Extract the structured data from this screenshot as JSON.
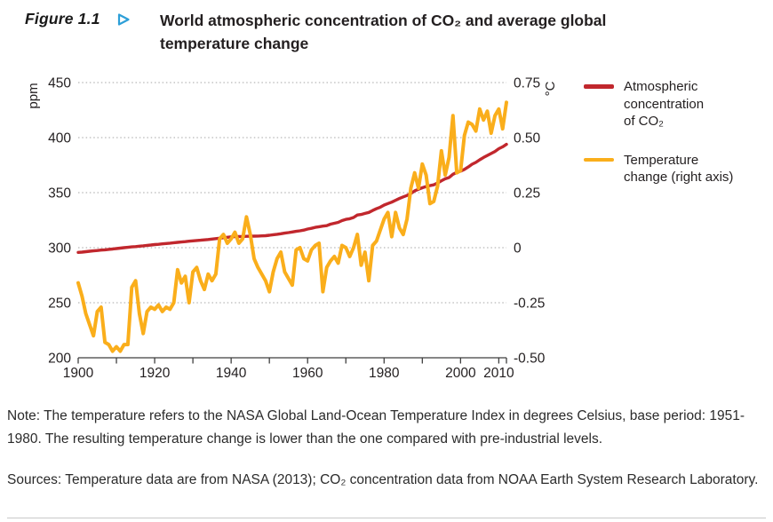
{
  "figure": {
    "label": "Figure 1.1",
    "marker_icon": "triangle-right-icon",
    "title": "World atmospheric concentration of CO₂ and average global\ntemperature change"
  },
  "legend": {
    "items": [
      {
        "label": "Atmospheric\nconcentration\nof CO₂",
        "color": "#C1272D"
      },
      {
        "label": "Temperature\nchange (right axis)",
        "color": "#FAAE1B"
      }
    ]
  },
  "note": "Note: The temperature refers to the NASA Global Land-Ocean Temperature Index in degrees Celsius, base period: 1951-1980. The resulting temperature change is lower than the one compared with pre-industrial levels.",
  "sources": "Sources: Temperature data are from NASA (2013); CO₂ concentration data from NOAA Earth System Research Laboratory.",
  "colors": {
    "co2_red": "#C1272D",
    "temp_yellow": "#FAAE1B",
    "marker_blue": "#2D9FD8",
    "grid_gray": "#A6A6A6",
    "axis_dark": "#3F3F3F",
    "text_dark": "#231F20"
  },
  "chart_data": {
    "type": "line",
    "title": "World atmospheric concentration of CO₂ and average global temperature change",
    "grid": "dotted-horizontal",
    "legend_position": "right",
    "x_axis": {
      "range": [
        1900,
        2012
      ],
      "tick_step_years": 10,
      "tick_labels": [
        1900,
        1920,
        1940,
        1960,
        1980,
        2000,
        2010
      ]
    },
    "left_axis": {
      "unit": "ppm",
      "range": [
        200,
        450
      ],
      "ticks": [
        450,
        400,
        350,
        300,
        250,
        200
      ]
    },
    "right_axis": {
      "unit": "°C",
      "range": [
        -0.5,
        0.75
      ],
      "tick_values": [
        0.75,
        0.5,
        0.25,
        0,
        -0.25,
        -0.5
      ],
      "tick_labels": [
        "0.75",
        "0.50",
        "0.25",
        "0",
        "-0.25",
        "-0.50"
      ]
    },
    "start_year": 1900,
    "series": [
      {
        "name": "Atmospheric concentration of CO₂",
        "axis": "left",
        "unit": "ppm",
        "color": "#C1272D",
        "values": [
          295.7,
          296.0,
          296.4,
          296.8,
          297.1,
          297.4,
          297.8,
          298.1,
          298.5,
          298.8,
          299.2,
          299.6,
          300.0,
          300.3,
          300.7,
          301.0,
          301.4,
          301.7,
          302.1,
          302.4,
          302.8,
          303.1,
          303.5,
          303.8,
          304.1,
          304.5,
          304.8,
          305.2,
          305.5,
          305.9,
          306.2,
          306.5,
          306.8,
          307.1,
          307.4,
          307.8,
          308.2,
          308.6,
          309.0,
          309.4,
          309.8,
          310.0,
          310.1,
          310.2,
          310.3,
          310.4,
          310.5,
          310.6,
          310.7,
          310.9,
          311.3,
          311.8,
          312.2,
          312.7,
          313.2,
          313.7,
          314.3,
          314.8,
          315.3,
          316.0,
          316.9,
          317.6,
          318.5,
          319.0,
          319.6,
          320.0,
          321.4,
          322.2,
          323.0,
          324.6,
          325.7,
          326.3,
          327.4,
          329.7,
          330.2,
          331.1,
          332.0,
          333.8,
          335.4,
          336.8,
          338.7,
          340.1,
          341.4,
          343.1,
          344.7,
          346.1,
          347.4,
          349.2,
          351.6,
          353.1,
          354.4,
          355.6,
          356.4,
          357.1,
          358.8,
          360.8,
          362.6,
          363.7,
          366.7,
          368.4,
          369.5,
          371.1,
          373.3,
          375.8,
          377.5,
          379.8,
          381.9,
          383.8,
          385.6,
          387.4,
          389.9,
          391.6,
          393.9
        ]
      },
      {
        "name": "Temperature change (right axis)",
        "axis": "right",
        "unit": "°C",
        "color": "#FAAE1B",
        "values": [
          -0.16,
          -0.22,
          -0.3,
          -0.35,
          -0.4,
          -0.29,
          -0.27,
          -0.43,
          -0.44,
          -0.47,
          -0.45,
          -0.47,
          -0.44,
          -0.44,
          -0.18,
          -0.15,
          -0.3,
          -0.39,
          -0.29,
          -0.27,
          -0.28,
          -0.26,
          -0.29,
          -0.27,
          -0.28,
          -0.25,
          -0.1,
          -0.16,
          -0.13,
          -0.25,
          -0.11,
          -0.09,
          -0.15,
          -0.19,
          -0.12,
          -0.15,
          -0.12,
          0.04,
          0.06,
          0.02,
          0.04,
          0.07,
          0.02,
          0.04,
          0.14,
          0.06,
          -0.05,
          -0.09,
          -0.12,
          -0.15,
          -0.2,
          -0.11,
          -0.05,
          -0.02,
          -0.11,
          -0.14,
          -0.17,
          -0.01,
          0.0,
          -0.05,
          -0.06,
          -0.01,
          0.01,
          0.02,
          -0.2,
          -0.09,
          -0.06,
          -0.04,
          -0.07,
          0.01,
          0.0,
          -0.04,
          0.0,
          0.06,
          -0.08,
          -0.02,
          -0.15,
          0.01,
          0.03,
          0.08,
          0.13,
          0.16,
          0.05,
          0.16,
          0.09,
          0.06,
          0.13,
          0.27,
          0.34,
          0.27,
          0.38,
          0.33,
          0.2,
          0.21,
          0.28,
          0.44,
          0.33,
          0.41,
          0.6,
          0.34,
          0.35,
          0.51,
          0.57,
          0.56,
          0.53,
          0.63,
          0.58,
          0.62,
          0.52,
          0.6,
          0.63,
          0.54,
          0.66
        ]
      }
    ]
  }
}
